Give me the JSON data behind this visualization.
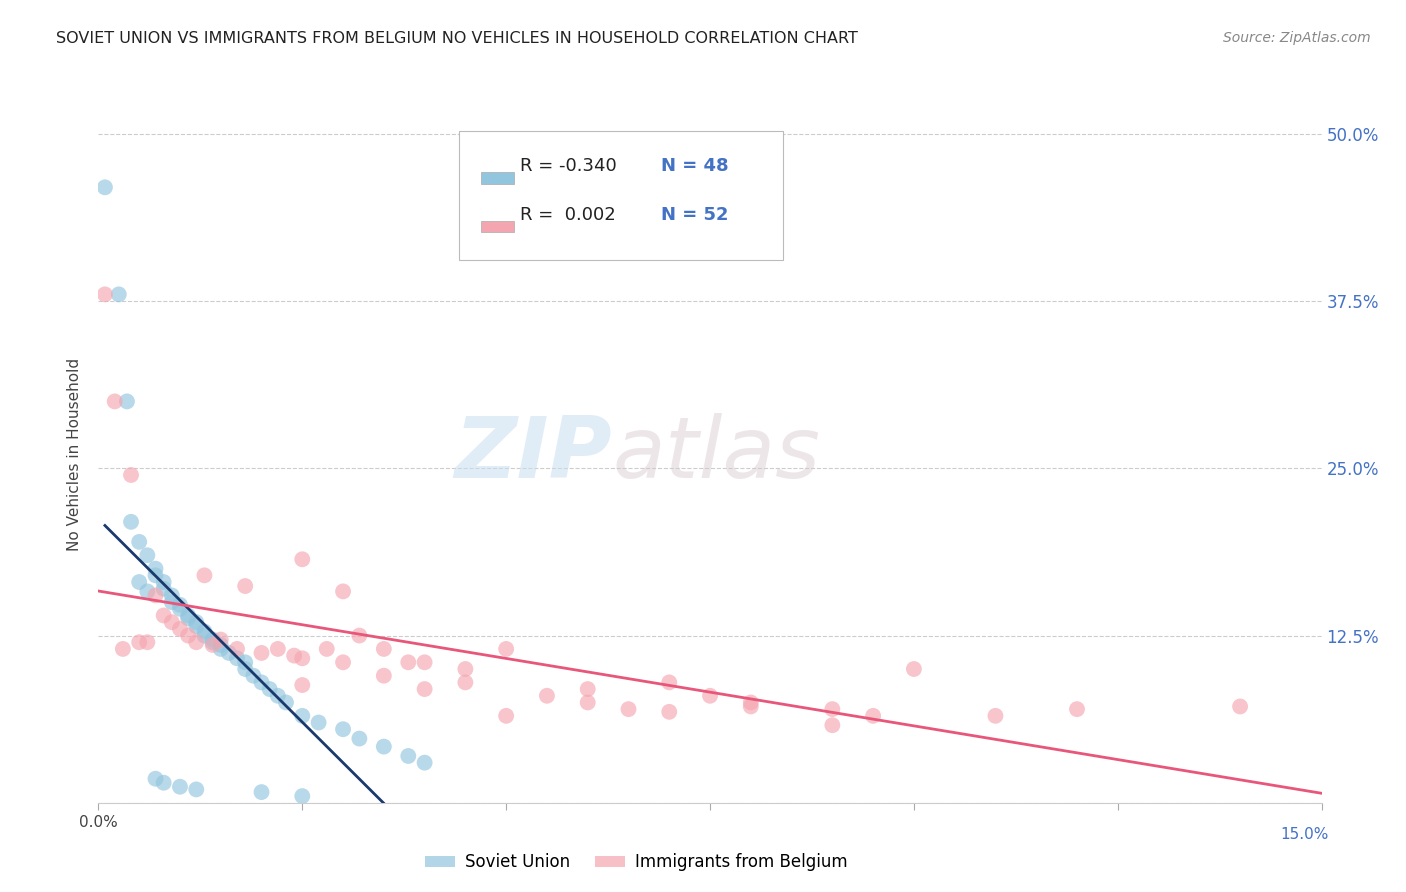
{
  "title": "SOVIET UNION VS IMMIGRANTS FROM BELGIUM NO VEHICLES IN HOUSEHOLD CORRELATION CHART",
  "source": "Source: ZipAtlas.com",
  "ylabel": "No Vehicles in Household",
  "xmin": 0.0,
  "xmax": 0.15,
  "ymin": 0.0,
  "ymax": 0.52,
  "yticks": [
    0.0,
    0.125,
    0.25,
    0.375,
    0.5
  ],
  "ytick_labels": [
    "",
    "12.5%",
    "25.0%",
    "37.5%",
    "50.0%"
  ],
  "xtick_positions": [
    0.0,
    0.025,
    0.05,
    0.075,
    0.1,
    0.125,
    0.15
  ],
  "soviet_color": "#92c5de",
  "belgium_color": "#f4a6b0",
  "line_soviet_color": "#1a3a6e",
  "line_belgium_color": "#e8567a",
  "watermark_zip": "ZIP",
  "watermark_atlas": "atlas",
  "soviet_x": [
    0.0008,
    0.0025,
    0.0035,
    0.004,
    0.005,
    0.006,
    0.007,
    0.007,
    0.008,
    0.008,
    0.009,
    0.009,
    0.01,
    0.01,
    0.011,
    0.011,
    0.012,
    0.012,
    0.013,
    0.013,
    0.014,
    0.014,
    0.015,
    0.015,
    0.016,
    0.017,
    0.018,
    0.018,
    0.019,
    0.02,
    0.021,
    0.022,
    0.023,
    0.025,
    0.027,
    0.03,
    0.032,
    0.035,
    0.038,
    0.04,
    0.005,
    0.006,
    0.007,
    0.008,
    0.01,
    0.012,
    0.02,
    0.025
  ],
  "soviet_y": [
    0.46,
    0.38,
    0.3,
    0.21,
    0.195,
    0.185,
    0.175,
    0.17,
    0.165,
    0.16,
    0.155,
    0.15,
    0.148,
    0.145,
    0.14,
    0.138,
    0.135,
    0.132,
    0.128,
    0.125,
    0.122,
    0.12,
    0.118,
    0.115,
    0.112,
    0.108,
    0.105,
    0.1,
    0.095,
    0.09,
    0.085,
    0.08,
    0.075,
    0.065,
    0.06,
    0.055,
    0.048,
    0.042,
    0.035,
    0.03,
    0.165,
    0.158,
    0.018,
    0.015,
    0.012,
    0.01,
    0.008,
    0.005
  ],
  "belgium_x": [
    0.0008,
    0.002,
    0.003,
    0.004,
    0.005,
    0.006,
    0.007,
    0.008,
    0.009,
    0.01,
    0.011,
    0.012,
    0.013,
    0.014,
    0.015,
    0.017,
    0.018,
    0.02,
    0.022,
    0.024,
    0.025,
    0.028,
    0.03,
    0.032,
    0.035,
    0.038,
    0.04,
    0.045,
    0.05,
    0.055,
    0.06,
    0.065,
    0.07,
    0.075,
    0.08,
    0.09,
    0.095,
    0.1,
    0.11,
    0.12,
    0.025,
    0.03,
    0.04,
    0.045,
    0.05,
    0.06,
    0.07,
    0.08,
    0.09,
    0.14,
    0.025,
    0.035
  ],
  "belgium_y": [
    0.38,
    0.3,
    0.115,
    0.245,
    0.12,
    0.12,
    0.155,
    0.14,
    0.135,
    0.13,
    0.125,
    0.12,
    0.17,
    0.118,
    0.122,
    0.115,
    0.162,
    0.112,
    0.115,
    0.11,
    0.108,
    0.115,
    0.105,
    0.125,
    0.115,
    0.105,
    0.085,
    0.09,
    0.115,
    0.08,
    0.075,
    0.07,
    0.09,
    0.08,
    0.075,
    0.07,
    0.065,
    0.1,
    0.065,
    0.07,
    0.182,
    0.158,
    0.105,
    0.1,
    0.065,
    0.085,
    0.068,
    0.072,
    0.058,
    0.072,
    0.088,
    0.095
  ]
}
